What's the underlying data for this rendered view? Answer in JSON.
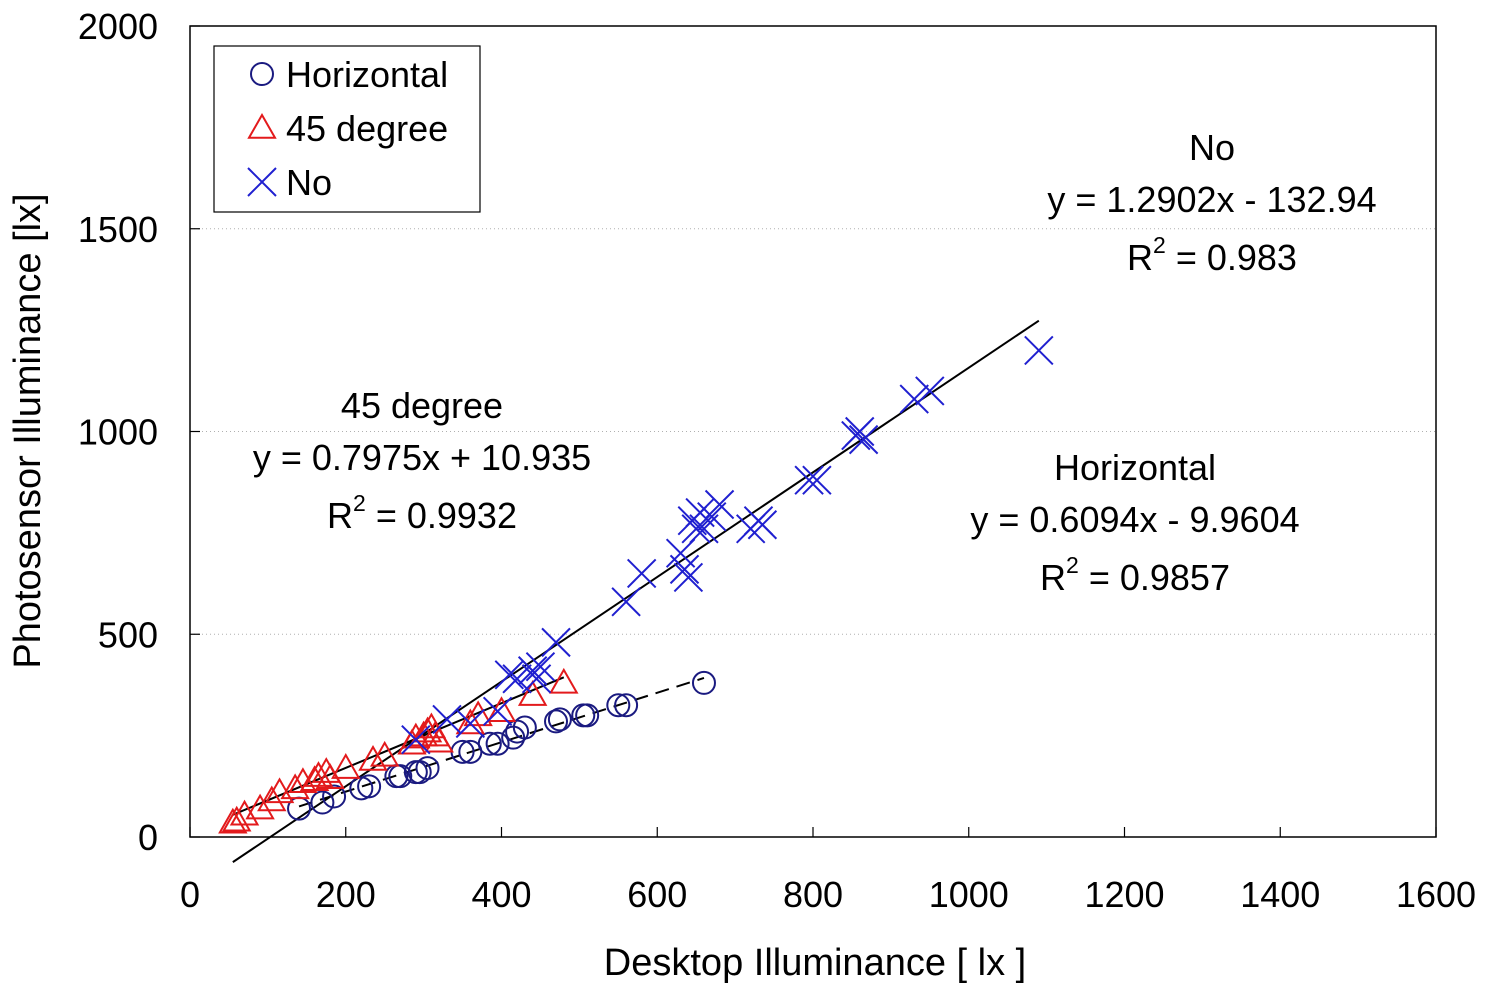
{
  "chart_data": {
    "type": "scatter",
    "xlabel": "Desktop Illuminance [ lx ]",
    "ylabel": "Photosensor  Illuminance  [lx]",
    "xlim": [
      0,
      1600
    ],
    "ylim": [
      0,
      2000
    ],
    "xticks": [
      "0",
      "200",
      "400",
      "600",
      "800",
      "1000",
      "1200",
      "1400",
      "1600"
    ],
    "yticks": [
      "0",
      "500",
      "1000",
      "1500",
      "2000"
    ],
    "grid": "horizontal dotted",
    "legend": {
      "position": "top-left",
      "entries": [
        {
          "label": "Horizontal",
          "marker": "circle",
          "color": "#1a1a80"
        },
        {
          "label": "45 degree",
          "marker": "triangle",
          "color": "#e31a1c"
        },
        {
          "label": "No",
          "marker": "x",
          "color": "#2020d0"
        }
      ]
    },
    "series": [
      {
        "name": "Horizontal",
        "marker": "circle",
        "color": "#1a1a80",
        "points": [
          [
            140,
            70
          ],
          [
            170,
            85
          ],
          [
            185,
            100
          ],
          [
            220,
            120
          ],
          [
            230,
            125
          ],
          [
            265,
            150
          ],
          [
            270,
            150
          ],
          [
            290,
            160
          ],
          [
            295,
            160
          ],
          [
            305,
            170
          ],
          [
            350,
            210
          ],
          [
            360,
            210
          ],
          [
            385,
            230
          ],
          [
            395,
            230
          ],
          [
            415,
            245
          ],
          [
            420,
            260
          ],
          [
            430,
            270
          ],
          [
            470,
            285
          ],
          [
            475,
            290
          ],
          [
            505,
            300
          ],
          [
            510,
            300
          ],
          [
            550,
            325
          ],
          [
            560,
            325
          ],
          [
            660,
            380
          ]
        ],
        "trendline": {
          "x": [
            140,
            660
          ],
          "style": "dashed"
        }
      },
      {
        "name": "45 degree",
        "marker": "triangle",
        "color": "#e31a1c",
        "points": [
          [
            55,
            35
          ],
          [
            60,
            40
          ],
          [
            70,
            55
          ],
          [
            90,
            70
          ],
          [
            105,
            90
          ],
          [
            115,
            110
          ],
          [
            135,
            120
          ],
          [
            145,
            135
          ],
          [
            160,
            140
          ],
          [
            165,
            150
          ],
          [
            175,
            160
          ],
          [
            180,
            145
          ],
          [
            200,
            170
          ],
          [
            235,
            190
          ],
          [
            250,
            200
          ],
          [
            285,
            230
          ],
          [
            290,
            245
          ],
          [
            300,
            250
          ],
          [
            305,
            260
          ],
          [
            310,
            270
          ],
          [
            315,
            250
          ],
          [
            320,
            235
          ],
          [
            360,
            280
          ],
          [
            370,
            300
          ],
          [
            400,
            310
          ],
          [
            440,
            350
          ],
          [
            480,
            380
          ]
        ],
        "trendline": {
          "x": [
            55,
            480
          ],
          "style": "solid"
        }
      },
      {
        "name": "No",
        "marker": "x",
        "color": "#2020d0",
        "points": [
          [
            290,
            240
          ],
          [
            330,
            290
          ],
          [
            360,
            280
          ],
          [
            395,
            310
          ],
          [
            410,
            400
          ],
          [
            420,
            390
          ],
          [
            440,
            410
          ],
          [
            445,
            390
          ],
          [
            450,
            420
          ],
          [
            470,
            480
          ],
          [
            560,
            580
          ],
          [
            580,
            650
          ],
          [
            630,
            700
          ],
          [
            635,
            660
          ],
          [
            640,
            640
          ],
          [
            645,
            780
          ],
          [
            650,
            760
          ],
          [
            655,
            800
          ],
          [
            660,
            760
          ],
          [
            670,
            790
          ],
          [
            680,
            820
          ],
          [
            720,
            760
          ],
          [
            730,
            780
          ],
          [
            735,
            770
          ],
          [
            795,
            880
          ],
          [
            805,
            880
          ],
          [
            855,
            990
          ],
          [
            860,
            1000
          ],
          [
            865,
            980
          ],
          [
            930,
            1080
          ],
          [
            950,
            1100
          ],
          [
            1090,
            1200
          ]
        ],
        "trendline": {
          "x": [
            55,
            1090
          ],
          "style": "solid"
        }
      }
    ],
    "annotations": [
      {
        "title": "No",
        "equation": "y = 1.2902x - 132.94",
        "r2_prefix": "R",
        "r2_sup": "2",
        "r2_rest": " = 0.983"
      },
      {
        "title": "45 degree",
        "equation": "y = 0.7975x + 10.935",
        "r2_prefix": "R",
        "r2_sup": "2",
        "r2_rest": " = 0.9932"
      },
      {
        "title": "Horizontal",
        "equation": "y = 0.6094x - 9.9604",
        "r2_prefix": "R",
        "r2_sup": "2",
        "r2_rest": " = 0.9857"
      }
    ],
    "fits": {
      "Horizontal": [
        0.6094,
        -9.9604
      ],
      "45 degree": [
        0.7975,
        10.935
      ],
      "No": [
        1.2902,
        -132.94
      ]
    }
  }
}
